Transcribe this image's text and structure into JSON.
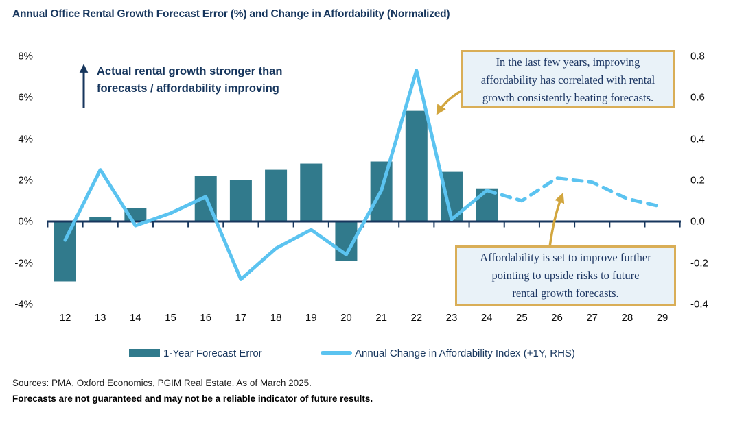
{
  "title": "Annual Office Rental Growth Forecast Error (%) and Change in Affordability (Normalized)",
  "annotation_arrow": {
    "text": "Actual rental growth stronger than\nforecasts / affordability improving"
  },
  "callouts": {
    "top": "In the last few years, improving\naffordability has correlated with rental\ngrowth consistently beating forecasts.",
    "bottom": "Affordability is set to improve further\npointing to upside risks to future\nrental growth forecasts."
  },
  "legend": {
    "bar_label": "1-Year Forecast Error",
    "line_label": "Annual Change in Affordability Index (+1Y, RHS)"
  },
  "footer": {
    "sources": "Sources: PMA, Oxford Economics, PGIM Real Estate. As of March 2025.",
    "disclaimer": "Forecasts are not guaranteed and may not be a reliable indicator of future results."
  },
  "colors": {
    "bar_teal": "#317a8c",
    "line_blue": "#5bc3f0",
    "axis_navy": "#17365d",
    "gold": "#d2a63e",
    "callout_border_gold": "#d9ae57",
    "callout_bg": "#e9f2f8",
    "callout_text_navy": "#1f3864"
  },
  "chart_data": {
    "type": "bar+line",
    "title": "Annual Office Rental Growth Forecast Error (%) and Change in Affordability (Normalized)",
    "categories": [
      "12",
      "13",
      "14",
      "15",
      "16",
      "17",
      "18",
      "19",
      "20",
      "21",
      "22",
      "23",
      "24",
      "25",
      "26",
      "27",
      "28",
      "29"
    ],
    "series": [
      {
        "name": "1-Year Forecast Error",
        "type": "bar",
        "axis": "left",
        "unit": "%",
        "values": [
          -2.9,
          0.2,
          0.65,
          0,
          2.2,
          2.0,
          2.5,
          2.8,
          -1.9,
          2.9,
          5.35,
          2.4,
          1.6,
          null,
          null,
          null,
          null,
          null
        ]
      },
      {
        "name": "Annual Change in Affordability Index (+1Y, RHS)",
        "type": "line",
        "axis": "right",
        "solid_until_category": "24",
        "dashed_after_category": "24",
        "values": [
          -0.09,
          0.25,
          -0.02,
          0.04,
          0.12,
          -0.28,
          -0.13,
          -0.04,
          -0.16,
          0.15,
          0.73,
          0.01,
          0.15,
          0.1,
          0.21,
          0.19,
          0.11,
          0.07
        ]
      }
    ],
    "left_axis": {
      "ticks": [
        "8%",
        "6%",
        "4%",
        "2%",
        "0%",
        "-2%",
        "-4%"
      ],
      "max": 8,
      "min": -4
    },
    "right_axis": {
      "ticks": [
        "0.8",
        "0.6",
        "0.4",
        "0.2",
        "0.0",
        "-0.2",
        "-0.4"
      ],
      "max": 0.8,
      "min": -0.4
    },
    "grid": false,
    "legend_position": "bottom"
  }
}
